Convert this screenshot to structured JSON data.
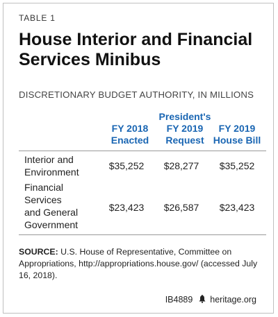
{
  "table_label": "TABLE 1",
  "title": "House Interior and Financial Services Minibus",
  "subtitle": "DISCRETIONARY BUDGET AUTHORITY, IN MILLIONS",
  "columns": [
    "FY 2018\nEnacted",
    "President's\nFY 2019\nRequest",
    "FY 2019\nHouse Bill"
  ],
  "rows": [
    {
      "label": "Interior and\nEnvironment",
      "values": [
        "$35,252",
        "$28,277",
        "$35,252"
      ]
    },
    {
      "label": "Financial\nServices\nand General\nGovernment",
      "values": [
        "$23,423",
        "$26,587",
        "$23,423"
      ]
    }
  ],
  "source": {
    "label": "SOURCE:",
    "text": "U.S. House of Representative, Committee on Appropriations, http://appropriations.house.gov/ (accessed July 16, 2018)."
  },
  "footer": {
    "id": "IB4889",
    "icon": "liberty-bell-icon",
    "site": "heritage.org"
  },
  "colors": {
    "accent": "#1a66b3",
    "text": "#222222",
    "rule": "#999999",
    "frame": "#bfbfbf"
  }
}
